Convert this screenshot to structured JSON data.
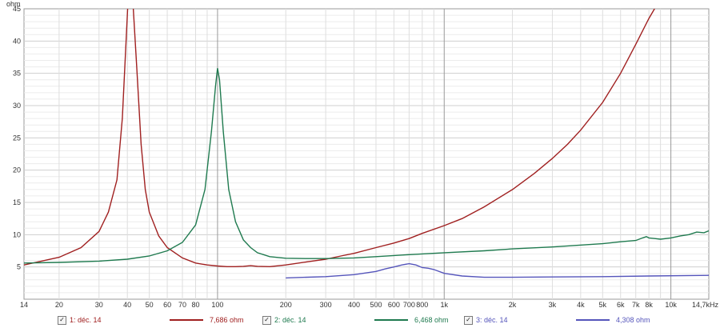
{
  "chart_data": {
    "type": "line",
    "title": "",
    "xlabel": "",
    "ylabel": "ohm",
    "x_scale": "log",
    "xlim": [
      14,
      14700
    ],
    "ylim": [
      0,
      45
    ],
    "grid": true,
    "legend_placement": "bottom",
    "x_tick_labels": [
      "14",
      "20",
      "30",
      "40",
      "50",
      "60",
      "70",
      "80",
      "100",
      "200",
      "300",
      "400",
      "500",
      "600",
      "700",
      "800",
      "1k",
      "2k",
      "3k",
      "4k",
      "5k",
      "6k",
      "7k",
      "8k",
      "10k",
      "14,7kHz"
    ],
    "x_tick_values": [
      14,
      20,
      30,
      40,
      50,
      60,
      70,
      80,
      100,
      200,
      300,
      400,
      500,
      600,
      700,
      800,
      1000,
      2000,
      3000,
      4000,
      5000,
      6000,
      7000,
      8000,
      10000,
      14700
    ],
    "y_ticks": [
      5,
      10,
      15,
      20,
      25,
      30,
      35,
      40,
      45
    ],
    "series": [
      {
        "name": "1: déc. 14",
        "legend_value": "7,686 ohm",
        "color": "#a02020",
        "x": [
          14,
          20,
          25,
          30,
          33,
          36,
          38,
          39.5,
          40.5,
          42,
          44,
          46,
          48,
          50,
          55,
          60,
          70,
          80,
          90,
          100,
          110,
          120,
          130,
          140,
          150,
          170,
          200,
          250,
          300,
          350,
          400,
          500,
          600,
          700,
          800,
          1000,
          1200,
          1500,
          2000,
          2500,
          3000,
          3500,
          4000,
          5000,
          6000,
          7000,
          8000,
          8800
        ],
        "y": [
          5.3,
          6.5,
          8.0,
          10.5,
          13.5,
          18.5,
          28,
          40,
          48,
          48,
          36,
          24,
          17,
          13.5,
          9.8,
          8.0,
          6.4,
          5.6,
          5.3,
          5.15,
          5.05,
          5.05,
          5.1,
          5.2,
          5.1,
          5.05,
          5.3,
          5.8,
          6.2,
          6.7,
          7.1,
          8.0,
          8.7,
          9.4,
          10.2,
          11.4,
          12.5,
          14.3,
          17.0,
          19.5,
          21.8,
          24,
          26.2,
          30.5,
          35,
          39.5,
          43.5,
          46
        ]
      },
      {
        "name": "2: déc. 14",
        "legend_value": "6,468 ohm",
        "color": "#1f7a4f",
        "x": [
          14,
          20,
          30,
          40,
          50,
          60,
          70,
          80,
          88,
          94,
          98,
          100,
          102,
          106,
          112,
          120,
          130,
          140,
          150,
          170,
          200,
          250,
          300,
          400,
          500,
          700,
          1000,
          1500,
          2000,
          3000,
          5000,
          6000,
          7000,
          7500,
          7800,
          8000,
          8500,
          9000,
          10000,
          11000,
          12000,
          13000,
          14000,
          14700
        ],
        "y": [
          5.6,
          5.7,
          5.9,
          6.2,
          6.7,
          7.5,
          8.8,
          11.5,
          17,
          26,
          33,
          35.8,
          34,
          26,
          17,
          12,
          9.2,
          8.0,
          7.2,
          6.6,
          6.35,
          6.3,
          6.3,
          6.4,
          6.6,
          6.9,
          7.2,
          7.5,
          7.8,
          8.1,
          8.6,
          8.9,
          9.1,
          9.5,
          9.7,
          9.5,
          9.4,
          9.3,
          9.5,
          9.8,
          10.0,
          10.4,
          10.3,
          10.6
        ]
      },
      {
        "name": "3: déc. 14",
        "legend_value": "4,308 ohm",
        "color": "#5555bb",
        "x": [
          200,
          300,
          400,
          500,
          550,
          600,
          650,
          700,
          750,
          800,
          850,
          900,
          1000,
          1200,
          1500,
          2000,
          3000,
          5000,
          8000,
          14700
        ],
        "y": [
          3.3,
          3.5,
          3.8,
          4.3,
          4.7,
          5.0,
          5.3,
          5.5,
          5.3,
          4.9,
          4.8,
          4.6,
          4.0,
          3.6,
          3.4,
          3.4,
          3.45,
          3.5,
          3.6,
          3.7
        ]
      }
    ]
  }
}
